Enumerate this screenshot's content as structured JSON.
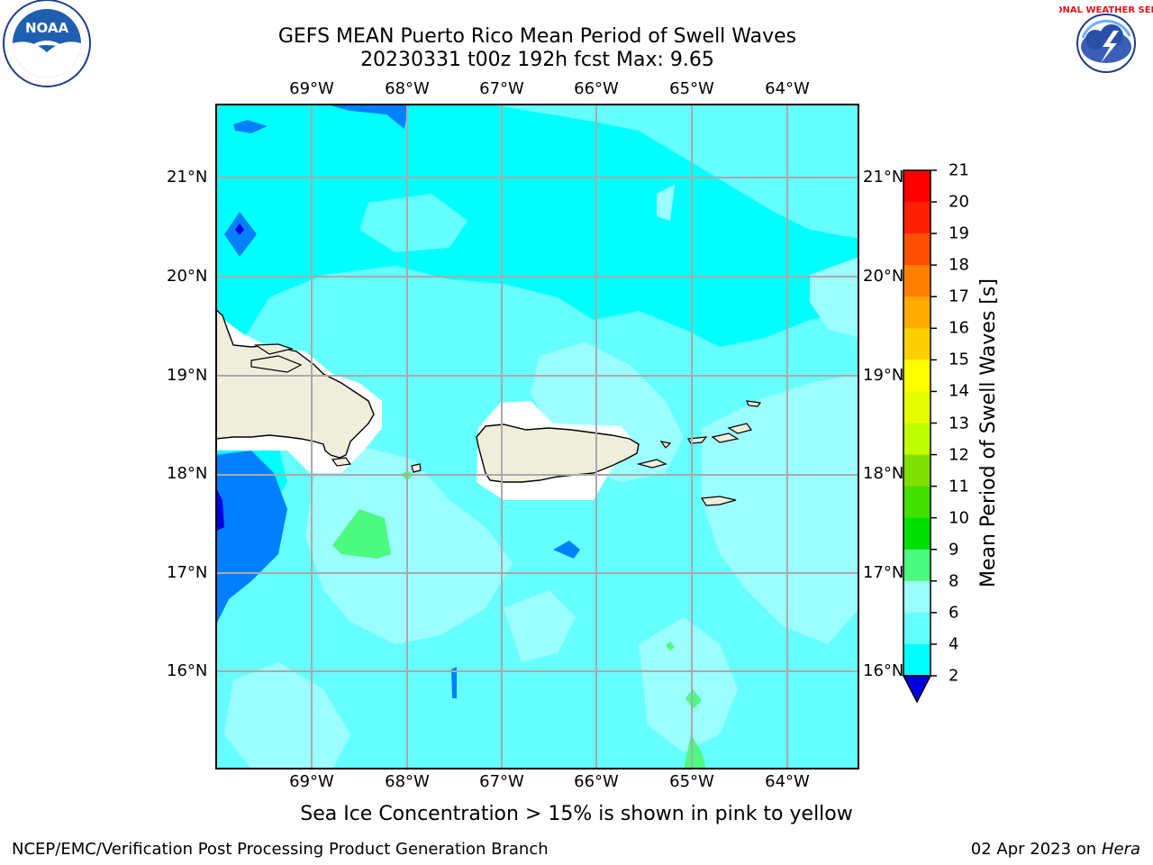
{
  "header": {
    "title_line1": "GEFS MEAN Puerto Rico Mean Period of Swell Waves",
    "title_line2": "20230331 t00z 192h fcst   Max: 9.65"
  },
  "logos": {
    "left_name": "NOAA",
    "right_name": "NATIONAL WEATHER SERVICE"
  },
  "map": {
    "lon_labels": [
      "69°W",
      "68°W",
      "67°W",
      "66°W",
      "65°W",
      "64°W"
    ],
    "lat_labels": [
      "21°N",
      "20°N",
      "19°N",
      "18°N",
      "17°N",
      "16°N"
    ],
    "colors": {
      "ocean_base": "#00ffff",
      "band_8_9": "#66ffff",
      "band_9_10": "#9cffff",
      "band_10_11": "#4cfa7f",
      "band_2_4": "#0080ff",
      "band_lt2": "#0000ff",
      "land": "#efeedc",
      "masked": "#ffffff"
    }
  },
  "colorbar": {
    "label": "Mean Period of Swell Waves [s]",
    "ticks": [
      "21",
      "20",
      "19",
      "18",
      "17",
      "16",
      "15",
      "14",
      "13",
      "12",
      "11",
      "10",
      "9",
      "8",
      "6",
      "4",
      "2"
    ],
    "colors": [
      "#0000e0",
      "#0080ff",
      "#00ffff",
      "#66ffff",
      "#9cffff",
      "#4cfa7f",
      "#00e000",
      "#40e000",
      "#80e000",
      "#c0ff00",
      "#e6ff00",
      "#ffff00",
      "#ffd000",
      "#ffaa00",
      "#ff8000",
      "#ff5000",
      "#ff2000",
      "#ff0000"
    ]
  },
  "footer": {
    "caption": "Sea Ice Concentration > 15% is shown in pink to yellow",
    "left": "NCEP/EMC/Verification Post Processing Product Generation Branch",
    "right_date": "02 Apr 2023 on ",
    "right_host": "Hera"
  }
}
